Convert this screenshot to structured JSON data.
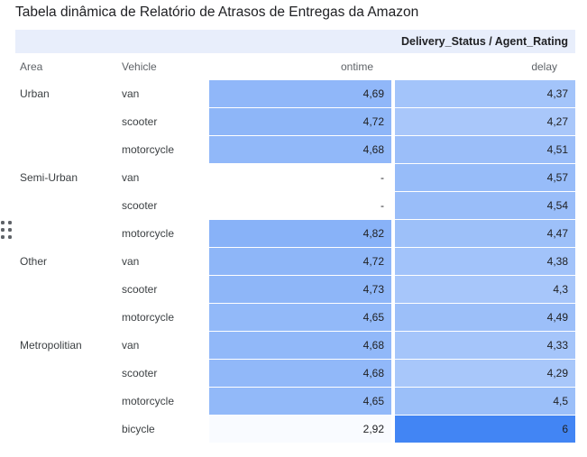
{
  "title": "Tabela dinâmica de Relatório de Atrasos de Entregas da Amazon",
  "chart_data": {
    "type": "table",
    "title": "Tabela dinâmica de Relatório de Atrasos de Entregas da Amazon",
    "pivot_header": "Delivery_Status / Agent_Rating",
    "col_headers": {
      "area": "Area",
      "vehicle": "Vehicle",
      "ontime": "ontime",
      "delay": "delay"
    },
    "rows": [
      {
        "area": "Urban",
        "vehicle": "van",
        "ontime": "4,69",
        "delay": "4,37"
      },
      {
        "area": "",
        "vehicle": "scooter",
        "ontime": "4,72",
        "delay": "4,27"
      },
      {
        "area": "",
        "vehicle": "motorcycle",
        "ontime": "4,68",
        "delay": "4,51"
      },
      {
        "area": "Semi-Urban",
        "vehicle": "van",
        "ontime": "-",
        "delay": "4,57"
      },
      {
        "area": "",
        "vehicle": "scooter",
        "ontime": "-",
        "delay": "4,54"
      },
      {
        "area": "",
        "vehicle": "motorcycle",
        "ontime": "4,82",
        "delay": "4,47"
      },
      {
        "area": "Other",
        "vehicle": "van",
        "ontime": "4,72",
        "delay": "4,38"
      },
      {
        "area": "",
        "vehicle": "scooter",
        "ontime": "4,73",
        "delay": "4,3"
      },
      {
        "area": "",
        "vehicle": "motorcycle",
        "ontime": "4,65",
        "delay": "4,49"
      },
      {
        "area": "Metropolitian",
        "vehicle": "van",
        "ontime": "4,68",
        "delay": "4,33"
      },
      {
        "area": "",
        "vehicle": "scooter",
        "ontime": "4,68",
        "delay": "4,29"
      },
      {
        "area": "",
        "vehicle": "motorcycle",
        "ontime": "4,65",
        "delay": "4,5"
      },
      {
        "area": "",
        "vehicle": "bicycle",
        "ontime": "2,92",
        "delay": "6"
      }
    ],
    "heatmap": {
      "base_color": "#4285f4",
      "min": 2.92,
      "max": 6,
      "empty_marker": "-",
      "header_band_color": "#e8eefb"
    }
  },
  "icons": {
    "drag_handle": "drag-dots"
  }
}
